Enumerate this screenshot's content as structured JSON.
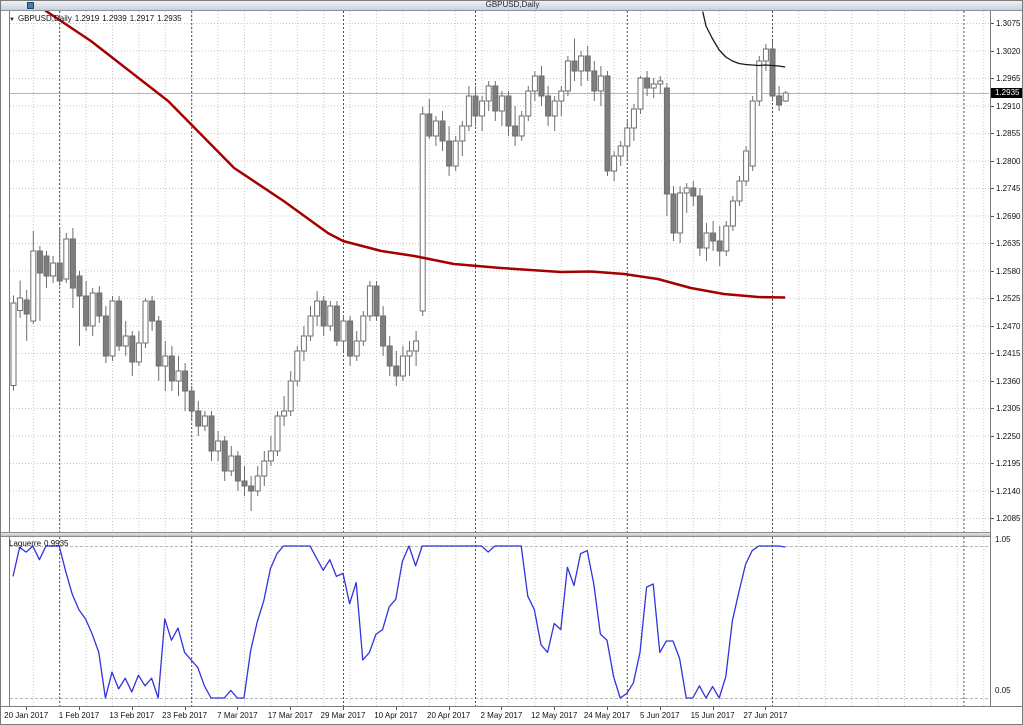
{
  "window": {
    "title": "GBPUSD,Daily"
  },
  "chart_header": {
    "collapse_arrow": "▼",
    "symbol": "GBPUSD,Daily",
    "open": "1.2919",
    "high": "1.2939",
    "low": "1.2917",
    "close": "1.2935"
  },
  "price_axis": {
    "current_price": "1.2935"
  },
  "indicator": {
    "name": "Laguerre",
    "value": "0.9935",
    "axis_max": "1.05",
    "axis_min": "0.05"
  },
  "colors": {
    "bull": "#ffffff",
    "bear": "#7d7d7d",
    "outline": "#6e6e6e",
    "wick": "#6e6e6e",
    "red_ma": "#a40000",
    "black_ma": "#1a1a1a",
    "laguerre": "#3333dd",
    "grid": "#c9c9c9",
    "separator": "#4d4d4d",
    "level": "#b8b8b8",
    "bid_line": "#b4b4b4",
    "frame": "#7d7d7d",
    "badge_bg": "#000000",
    "badge_text": "#ffffff"
  },
  "chart_data": [
    {
      "type": "candlestick",
      "title": "GBPUSD,Daily",
      "symbol": "GBPUSD",
      "timeframe": "Daily",
      "ylim": [
        1.2085,
        1.3075
      ],
      "grid": true,
      "y_ticks": [
        "1.3075",
        "1.3020",
        "1.2965",
        "1.2910",
        "1.2855",
        "1.2800",
        "1.2745",
        "1.2690",
        "1.2635",
        "1.2580",
        "1.2525",
        "1.2470",
        "1.2415",
        "1.2360",
        "1.2305",
        "1.2250",
        "1.2195",
        "1.2140",
        "1.2085"
      ],
      "x_labels": [
        {
          "i": 2,
          "text": "20 Jan 2017"
        },
        {
          "i": 10,
          "text": "1 Feb 2017"
        },
        {
          "i": 18,
          "text": "13 Feb 2017"
        },
        {
          "i": 26,
          "text": "23 Feb 2017"
        },
        {
          "i": 34,
          "text": "7 Mar 2017"
        },
        {
          "i": 42,
          "text": "17 Mar 2017"
        },
        {
          "i": 50,
          "text": "29 Mar 2017"
        },
        {
          "i": 58,
          "text": "10 Apr 2017"
        },
        {
          "i": 66,
          "text": "20 Apr 2017"
        },
        {
          "i": 74,
          "text": "2 May 2017"
        },
        {
          "i": 82,
          "text": "12 May 2017"
        },
        {
          "i": 90,
          "text": "24 May 2017"
        },
        {
          "i": 98,
          "text": "5 Jun 2017"
        },
        {
          "i": 106,
          "text": "15 Jun 2017"
        },
        {
          "i": 114,
          "text": "27 Jun 2017"
        }
      ],
      "separators_i": [
        7,
        27,
        50,
        70,
        93,
        115,
        144
      ],
      "bid": 1.2935,
      "bars": [
        [
          1.235,
          1.253,
          1.234,
          1.2515
        ],
        [
          1.25,
          1.256,
          1.2485,
          1.2525
        ],
        [
          1.2521,
          1.2541,
          1.2439,
          1.2493
        ],
        [
          1.2479,
          1.2659,
          1.2473,
          1.2619
        ],
        [
          1.2619,
          1.2629,
          1.2479,
          1.2575
        ],
        [
          1.2609,
          1.2619,
          1.2545,
          1.2569
        ],
        [
          1.2569,
          1.2609,
          1.2555,
          1.2595
        ],
        [
          1.2595,
          1.2663,
          1.2549,
          1.2559
        ],
        [
          1.2563,
          1.2655,
          1.2555,
          1.2643
        ],
        [
          1.2643,
          1.2665,
          1.2505,
          1.2545
        ],
        [
          1.2569,
          1.2579,
          1.2429,
          1.2529
        ],
        [
          1.2529,
          1.2559,
          1.2459,
          1.2469
        ],
        [
          1.2469,
          1.2545,
          1.2449,
          1.2535
        ],
        [
          1.2535,
          1.2549,
          1.2475,
          1.2489
        ],
        [
          1.2489,
          1.2509,
          1.2395,
          1.2409
        ],
        [
          1.2409,
          1.2529,
          1.2399,
          1.2519
        ],
        [
          1.2519,
          1.2529,
          1.2419,
          1.2429
        ],
        [
          1.2429,
          1.2479,
          1.2409,
          1.2449
        ],
        [
          1.2449,
          1.2459,
          1.2369,
          1.2397
        ],
        [
          1.2397,
          1.2459,
          1.2389,
          1.2435
        ],
        [
          1.2435,
          1.2525,
          1.2425,
          1.2519
        ],
        [
          1.2519,
          1.2529,
          1.2459,
          1.2479
        ],
        [
          1.2479,
          1.2489,
          1.2359,
          1.2389
        ],
        [
          1.2389,
          1.2439,
          1.2339,
          1.2409
        ],
        [
          1.2409,
          1.2429,
          1.2339,
          1.2359
        ],
        [
          1.2359,
          1.2409,
          1.2329,
          1.2379
        ],
        [
          1.2379,
          1.2395,
          1.2299,
          1.2339
        ],
        [
          1.2339,
          1.2349,
          1.2279,
          1.2299
        ],
        [
          1.2299,
          1.2319,
          1.2249,
          1.2269
        ],
        [
          1.2269,
          1.2299,
          1.2259,
          1.2289
        ],
        [
          1.2289,
          1.2299,
          1.2199,
          1.2219
        ],
        [
          1.2219,
          1.2259,
          1.2199,
          1.2239
        ],
        [
          1.2239,
          1.2249,
          1.2159,
          1.2179
        ],
        [
          1.2179,
          1.2229,
          1.2169,
          1.2209
        ],
        [
          1.2209,
          1.2219,
          1.2139,
          1.2159
        ],
        [
          1.2159,
          1.2189,
          1.2129,
          1.2149
        ],
        [
          1.2149,
          1.2169,
          1.2099,
          1.2139
        ],
        [
          1.2139,
          1.2189,
          1.2129,
          1.2169
        ],
        [
          1.2169,
          1.2219,
          1.2149,
          1.2199
        ],
        [
          1.2199,
          1.2249,
          1.2189,
          1.2219
        ],
        [
          1.2219,
          1.2299,
          1.2209,
          1.2289
        ],
        [
          1.2289,
          1.2329,
          1.2269,
          1.2299
        ],
        [
          1.2299,
          1.2379,
          1.2289,
          1.2359
        ],
        [
          1.2359,
          1.2429,
          1.2349,
          1.2419
        ],
        [
          1.2419,
          1.2469,
          1.2399,
          1.2449
        ],
        [
          1.2449,
          1.2509,
          1.2439,
          1.2489
        ],
        [
          1.2489,
          1.2539,
          1.2469,
          1.2519
        ],
        [
          1.2519,
          1.2529,
          1.2449,
          1.2469
        ],
        [
          1.2469,
          1.2519,
          1.2459,
          1.2509
        ],
        [
          1.2509,
          1.2519,
          1.2429,
          1.2439
        ],
        [
          1.2439,
          1.2489,
          1.2419,
          1.2479
        ],
        [
          1.2479,
          1.2489,
          1.2389,
          1.2409
        ],
        [
          1.2409,
          1.2459,
          1.2399,
          1.2439
        ],
        [
          1.2439,
          1.2499,
          1.2429,
          1.2489
        ],
        [
          1.2489,
          1.2559,
          1.2479,
          1.2549
        ],
        [
          1.2549,
          1.2559,
          1.2479,
          1.2489
        ],
        [
          1.2489,
          1.2509,
          1.2409,
          1.2429
        ],
        [
          1.2429,
          1.2449,
          1.2369,
          1.2389
        ],
        [
          1.2389,
          1.2419,
          1.2349,
          1.2369
        ],
        [
          1.2369,
          1.2429,
          1.2359,
          1.2409
        ],
        [
          1.2409,
          1.2439,
          1.2369,
          1.2419
        ],
        [
          1.2419,
          1.2459,
          1.2389,
          1.2439
        ],
        [
          1.2499,
          1.2908,
          1.2489,
          1.2893
        ],
        [
          1.2893,
          1.2923,
          1.2843,
          1.2849
        ],
        [
          1.2849,
          1.2889,
          1.2829,
          1.2879
        ],
        [
          1.2879,
          1.2899,
          1.2819,
          1.2839
        ],
        [
          1.2839,
          1.2869,
          1.2769,
          1.2789
        ],
        [
          1.2789,
          1.2849,
          1.2779,
          1.2839
        ],
        [
          1.2839,
          1.2879,
          1.2809,
          1.2869
        ],
        [
          1.2869,
          1.2949,
          1.2859,
          1.2929
        ],
        [
          1.2929,
          1.2949,
          1.2869,
          1.2889
        ],
        [
          1.2889,
          1.2929,
          1.2859,
          1.2919
        ],
        [
          1.2919,
          1.2959,
          1.2899,
          1.2949
        ],
        [
          1.2949,
          1.2959,
          1.2879,
          1.2899
        ],
        [
          1.2899,
          1.2939,
          1.2869,
          1.2929
        ],
        [
          1.2929,
          1.2939,
          1.2849,
          1.2869
        ],
        [
          1.2869,
          1.2909,
          1.2829,
          1.2849
        ],
        [
          1.2849,
          1.2899,
          1.2839,
          1.2889
        ],
        [
          1.2889,
          1.2949,
          1.2879,
          1.2939
        ],
        [
          1.2939,
          1.2979,
          1.2919,
          1.2969
        ],
        [
          1.2969,
          1.2989,
          1.2909,
          1.2929
        ],
        [
          1.2929,
          1.2949,
          1.2869,
          1.2889
        ],
        [
          1.2889,
          1.2929,
          1.2859,
          1.2919
        ],
        [
          1.2919,
          1.2949,
          1.2889,
          1.2939
        ],
        [
          1.2939,
          1.3009,
          1.2929,
          1.2999
        ],
        [
          1.2999,
          1.3044,
          1.2959,
          1.2979
        ],
        [
          1.2979,
          1.3019,
          1.2949,
          1.3009
        ],
        [
          1.3009,
          1.3029,
          1.2959,
          1.2979
        ],
        [
          1.2979,
          1.2999,
          1.2919,
          1.2939
        ],
        [
          1.2939,
          1.2989,
          1.2909,
          1.2969
        ],
        [
          1.2969,
          1.2979,
          1.2769,
          1.2779
        ],
        [
          1.2779,
          1.2819,
          1.2759,
          1.2809
        ],
        [
          1.2809,
          1.2839,
          1.2789,
          1.2829
        ],
        [
          1.2829,
          1.2879,
          1.2799,
          1.2865
        ],
        [
          1.2865,
          1.2913,
          1.2839,
          1.2903
        ],
        [
          1.2903,
          1.2969,
          1.2893,
          1.2965
        ],
        [
          1.2965,
          1.2979,
          1.2929,
          1.2945
        ],
        [
          1.2945,
          1.2965,
          1.2925,
          1.2953
        ],
        [
          1.2953,
          1.2969,
          1.2933,
          1.2959
        ],
        [
          1.2945,
          1.2955,
          1.2689,
          1.2733
        ],
        [
          1.2733,
          1.2749,
          1.2639,
          1.2655
        ],
        [
          1.2655,
          1.2749,
          1.2635,
          1.2735
        ],
        [
          1.2735,
          1.2755,
          1.2695,
          1.2745
        ],
        [
          1.2745,
          1.2759,
          1.2709,
          1.2729
        ],
        [
          1.2729,
          1.2745,
          1.2609,
          1.2625
        ],
        [
          1.2625,
          1.2675,
          1.2599,
          1.2655
        ],
        [
          1.2655,
          1.2679,
          1.2619,
          1.2639
        ],
        [
          1.2639,
          1.2669,
          1.2589,
          1.2619
        ],
        [
          1.2619,
          1.2679,
          1.2609,
          1.2669
        ],
        [
          1.2669,
          1.2729,
          1.2659,
          1.2719
        ],
        [
          1.2719,
          1.2769,
          1.2709,
          1.2759
        ],
        [
          1.2759,
          1.2829,
          1.2749,
          1.2819
        ],
        [
          1.2789,
          1.2929,
          1.2779,
          1.2919
        ],
        [
          1.2919,
          1.3009,
          1.2909,
          1.2999
        ],
        [
          1.2999,
          1.3033,
          1.2979,
          1.3023
        ],
        [
          1.3023,
          1.3039,
          1.2919,
          1.2929
        ],
        [
          1.2929,
          1.2949,
          1.2899,
          1.2911
        ],
        [
          1.2919,
          1.2939,
          1.2917,
          1.2935
        ]
      ],
      "series": [
        {
          "name": "red-moving-average",
          "color": "#a40000",
          "points": [
            [
              4.6,
              1.3105
            ],
            [
              5,
              1.3099
            ],
            [
              11.8,
              1.3039
            ],
            [
              23.5,
              1.2919
            ],
            [
              33.5,
              1.2785
            ],
            [
              41,
              1.2719
            ],
            [
              47.7,
              1.2655
            ],
            [
              50,
              1.2639
            ],
            [
              55.8,
              1.2619
            ],
            [
              60.8,
              1.2609
            ],
            [
              66.8,
              1.2593
            ],
            [
              73.9,
              1.2585
            ],
            [
              83,
              1.2577
            ],
            [
              87.6,
              1.2578
            ],
            [
              92.6,
              1.2573
            ],
            [
              97.7,
              1.2563
            ],
            [
              102.7,
              1.2545
            ],
            [
              107.7,
              1.2533
            ],
            [
              112.9,
              1.2527
            ],
            [
              117,
              1.2526
            ]
          ]
        },
        {
          "name": "black-moving-average",
          "color": "#1a1a1a",
          "points": [
            [
              104.5,
              1.3098
            ],
            [
              105,
              1.3069
            ],
            [
              106,
              1.3043
            ],
            [
              107,
              1.3021
            ],
            [
              108,
              1.3007
            ],
            [
              109,
              1.2999
            ],
            [
              110,
              1.2994
            ],
            [
              111,
              1.2992
            ],
            [
              112,
              1.2991
            ],
            [
              113,
              1.299
            ],
            [
              114,
              1.2991
            ],
            [
              115,
              1.299
            ],
            [
              116,
              1.2989
            ],
            [
              117,
              1.2987
            ]
          ]
        }
      ]
    },
    {
      "type": "line",
      "title": "Laguerre",
      "ylim": [
        -0.05,
        1.05
      ],
      "levels": [
        0.0,
        1.0
      ],
      "y_tick_max": "1.05",
      "y_tick_min": "0.05",
      "values": [
        0.8,
        0.99,
        0.96,
        1.0,
        0.91,
        1.0,
        1.0,
        1.0,
        0.83,
        0.68,
        0.58,
        0.52,
        0.42,
        0.3,
        0.0,
        0.17,
        0.06,
        0.13,
        0.04,
        0.15,
        0.08,
        0.13,
        0.0,
        0.52,
        0.38,
        0.46,
        0.3,
        0.25,
        0.2,
        0.08,
        0.0,
        0.0,
        0.0,
        0.05,
        0.0,
        0.0,
        0.31,
        0.5,
        0.64,
        0.85,
        0.95,
        1.0,
        1.0,
        1.0,
        1.0,
        1.0,
        0.92,
        0.84,
        0.91,
        0.8,
        0.82,
        0.62,
        0.76,
        0.25,
        0.3,
        0.42,
        0.45,
        0.6,
        0.65,
        0.9,
        1.0,
        0.87,
        1.0,
        1.0,
        1.0,
        1.0,
        1.0,
        1.0,
        1.0,
        1.0,
        1.0,
        1.0,
        0.96,
        1.0,
        1.0,
        1.0,
        1.0,
        1.0,
        0.67,
        0.58,
        0.35,
        0.3,
        0.49,
        0.45,
        0.86,
        0.74,
        0.95,
        0.97,
        0.75,
        0.42,
        0.38,
        0.14,
        0.0,
        0.03,
        0.1,
        0.3,
        0.73,
        0.75,
        0.3,
        0.375,
        0.375,
        0.26,
        0.0,
        0.0,
        0.08,
        0.0,
        0.075,
        0.0,
        0.14,
        0.51,
        0.7,
        0.88,
        0.97,
        1.0,
        1.0,
        1.0,
        1.0,
        0.9935
      ]
    }
  ]
}
